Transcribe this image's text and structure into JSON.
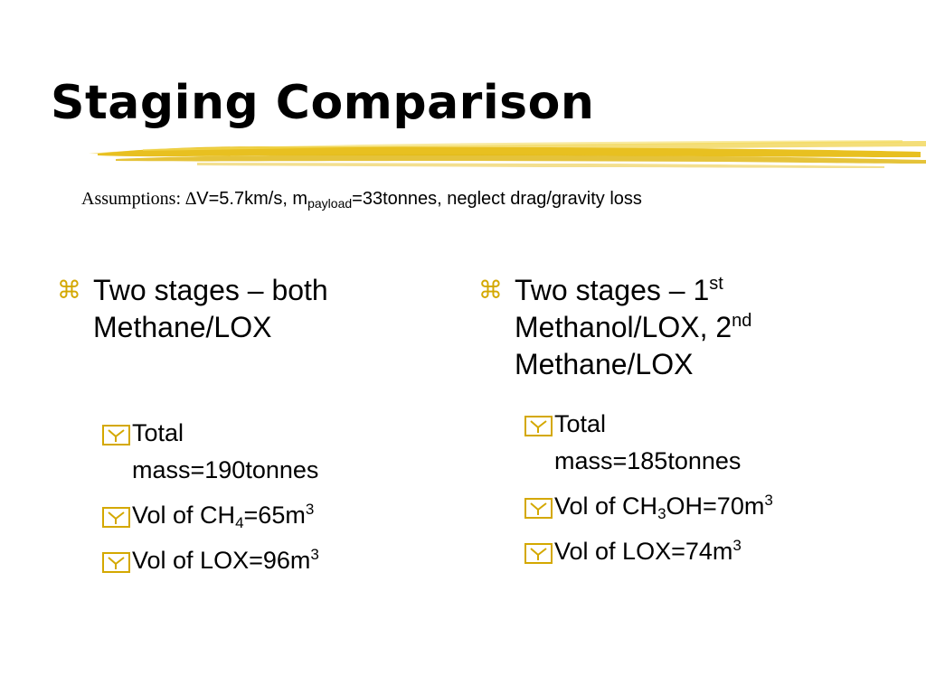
{
  "slide": {
    "title": "Staging Comparison"
  },
  "assumptions": {
    "label": "Assumptions: ",
    "delta_symbol": "∆",
    "delta_v": "V=5.7km/s, m",
    "payload_subscript": "payload",
    "payload_value": "=33tonnes",
    "tail": ", neglect drag/gravity loss"
  },
  "left_column": {
    "main_bullet": {
      "line1": "Two stages – both",
      "line2": "Methane/LOX"
    },
    "sub_bullets": {
      "total_mass": {
        "line1": "Total",
        "line2": "mass=190tonnes"
      },
      "vol_ch4": {
        "prefix": "Vol of CH",
        "sub": "4",
        "middle": "=65m",
        "sup": "3"
      },
      "vol_lox": {
        "prefix": "Vol of LOX=96m",
        "sup": "3"
      }
    }
  },
  "right_column": {
    "main_bullet": {
      "line1_text": "Two stages – 1",
      "line1_sup": "st",
      "line2_text": "Methanol/LOX, 2",
      "line2_sup": "nd",
      "line3": "Methane/LOX"
    },
    "sub_bullets": {
      "total_mass": {
        "line1": "Total",
        "line2": "mass=185tonnes"
      },
      "vol_ch3oh": {
        "prefix": "Vol of CH",
        "sub": "3",
        "middle": "OH=70m",
        "sup": "3"
      },
      "vol_lox": {
        "prefix": "Vol of LOX=74m",
        "sup": "3"
      }
    }
  },
  "icons": {
    "main_bullet": "z-bullet-glyph",
    "main_bullet_glyph": "⌘",
    "sub_bullet": "checkbox-icon"
  },
  "colors": {
    "accent": "#e8c020",
    "bullet": "#d4a800",
    "text": "#000000",
    "background": "#ffffff"
  }
}
